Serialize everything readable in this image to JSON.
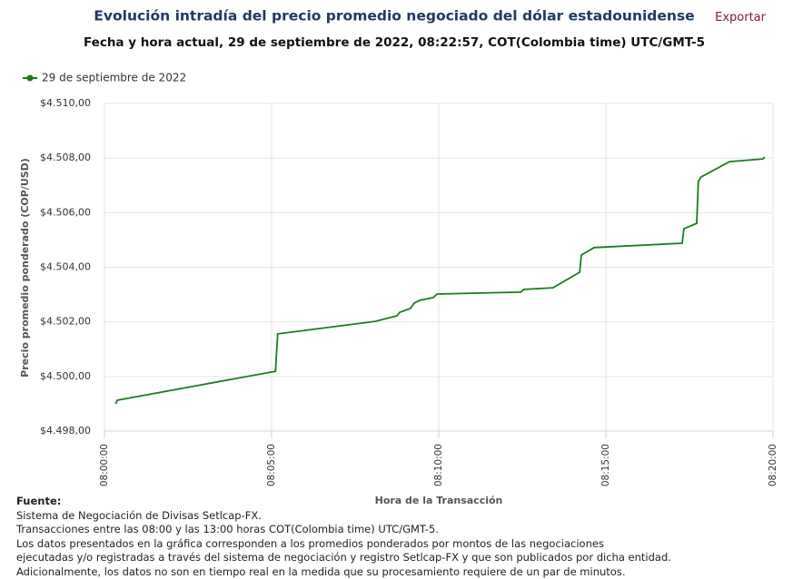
{
  "export_button": "Exportar",
  "chart_data": {
    "type": "line",
    "title": "Evolución intradía del precio promedio negociado del dólar estadounidense",
    "subtitle": "Fecha y hora actual, 29 de septiembre de 2022, 08:22:57, COT(Colombia time) UTC/GMT-5",
    "ylabel": "Precio promedio ponderado (COP/USD)",
    "xlabel": "Hora de la Transacción",
    "x": [
      "08:00:20",
      "08:00:23",
      "08:05:07",
      "08:05:11",
      "08:08:06",
      "08:08:45",
      "08:08:50",
      "08:09:09",
      "08:09:16",
      "08:09:26",
      "08:09:50",
      "08:09:57",
      "08:12:27",
      "08:12:33",
      "08:13:25",
      "08:14:13",
      "08:14:16",
      "08:14:39",
      "08:17:17",
      "08:17:20",
      "08:17:43",
      "08:17:46",
      "08:17:51",
      "08:18:42",
      "08:19:42",
      "08:19:45"
    ],
    "series": [
      {
        "name": "29 de septiembre de 2022",
        "color": "#1e7b1e",
        "values": [
          4499.0,
          4499.13,
          4500.19,
          4501.56,
          4502.02,
          4502.22,
          4502.35,
          4502.49,
          4502.69,
          4502.79,
          4502.89,
          4503.02,
          4503.09,
          4503.19,
          4503.25,
          4503.82,
          4504.45,
          4504.72,
          4504.88,
          4505.41,
          4505.61,
          4507.14,
          4507.31,
          4507.87,
          4507.97,
          4508.04
        ]
      }
    ],
    "xlim": [
      "08:00:00",
      "08:20:00"
    ],
    "xticks": [
      "08:00:00",
      "08:05:00",
      "08:10:00",
      "08:15:00",
      "08:20:00"
    ],
    "ylim": [
      4498,
      4510
    ],
    "yticks": [
      {
        "value": 4498,
        "label": "$4.498,00"
      },
      {
        "value": 4500,
        "label": "$4.500,00"
      },
      {
        "value": 4502,
        "label": "$4.502,00"
      },
      {
        "value": 4504,
        "label": "$4.504,00"
      },
      {
        "value": 4506,
        "label": "$4.506,00"
      },
      {
        "value": 4508,
        "label": "$4.508,00"
      },
      {
        "value": 4510,
        "label": "$4.510,00"
      }
    ],
    "grid": true
  },
  "footer": {
    "heading": "Fuente:",
    "lines": [
      "Sistema de Negociación de Divisas Setlcap-FX.",
      "Transacciones entre las 08:00 y las 13:00 horas COT(Colombia time) UTC/GMT-5.",
      "Los datos presentados en la gráfica corresponden a los promedios ponderados por montos de las negociaciones",
      "ejecutadas y/o registradas a través del sistema de negociación y registro Setlcap-FX y que son publicados por dicha entidad.",
      "Adicionalmente, los datos no son en tiempo real en la medida que su procesamiento requiere de un par de minutos."
    ]
  }
}
